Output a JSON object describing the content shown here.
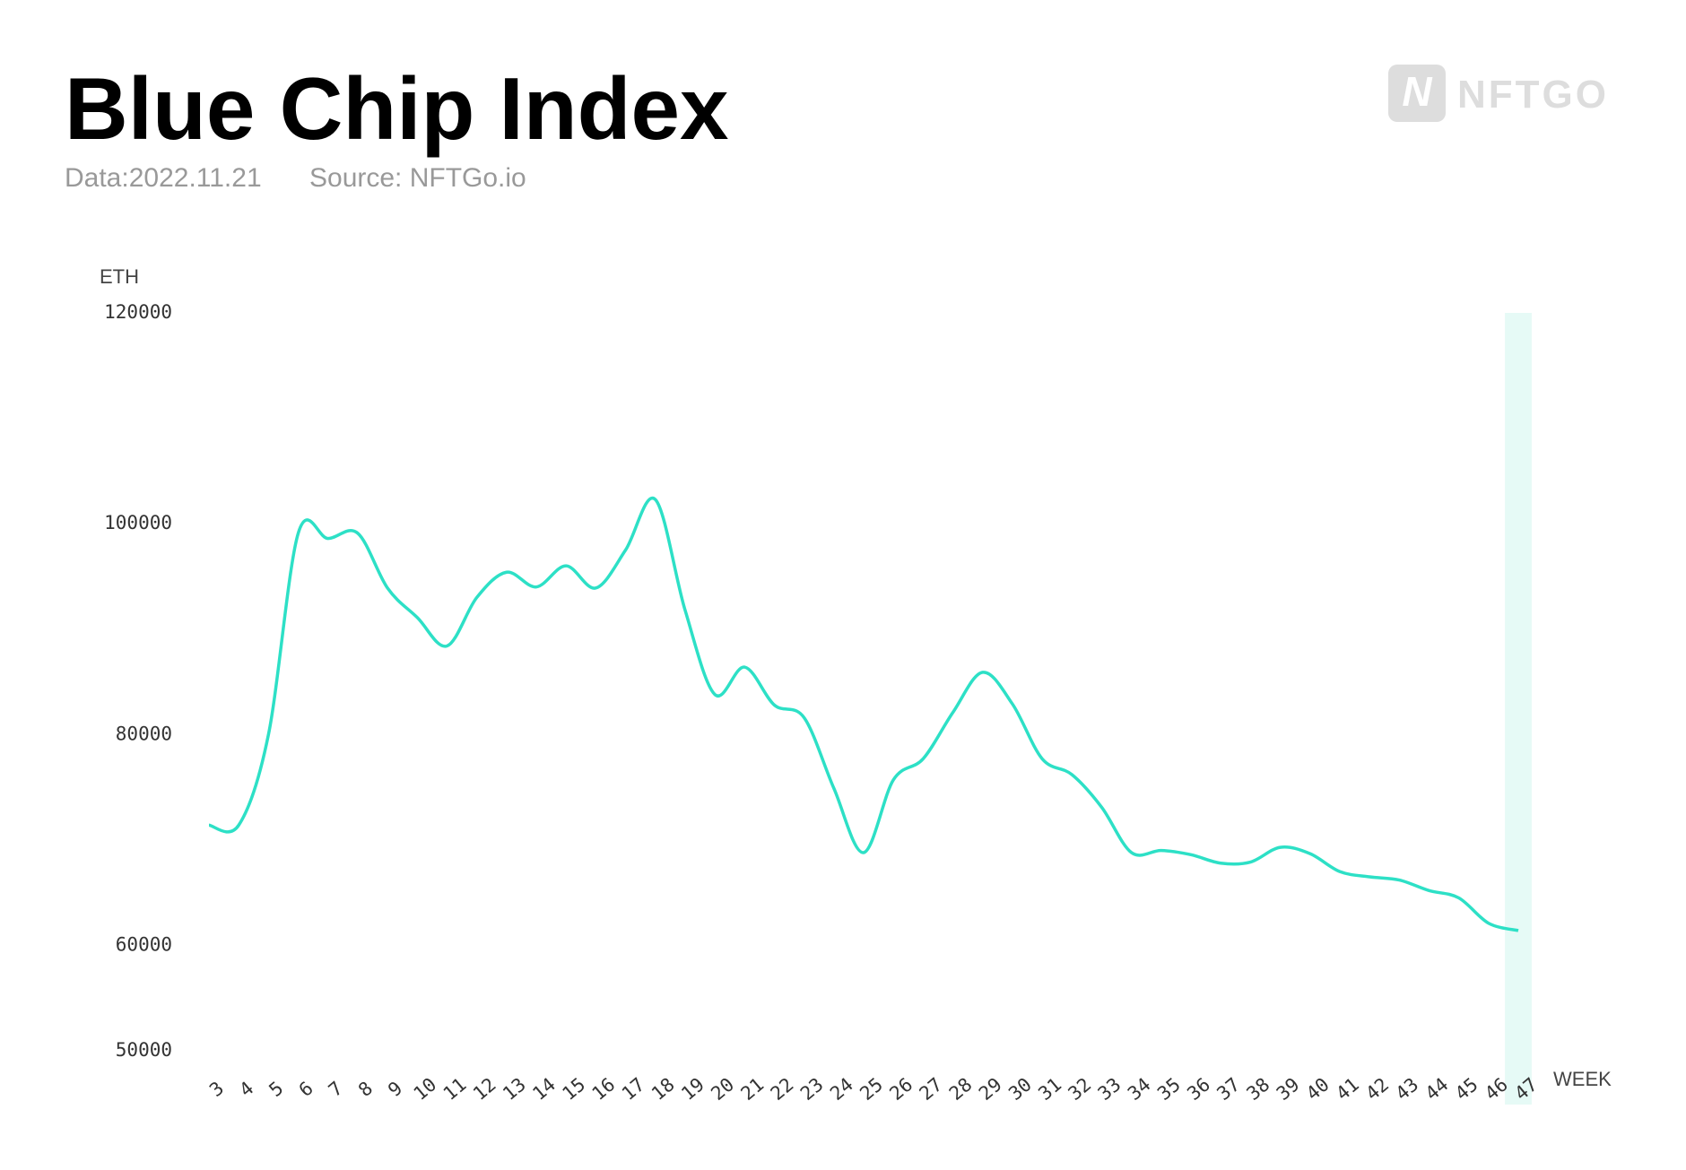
{
  "title": "Blue Chip Index",
  "date_label": "Data:2022.11.21",
  "source_label": "Source: NFTGo.io",
  "logo": "NFTGO",
  "chart_data": {
    "type": "line",
    "y_label": "ETH",
    "x_label": "WEEK",
    "color": "#2de0c6",
    "x": [
      3,
      4,
      5,
      6,
      7,
      8,
      9,
      10,
      11,
      12,
      13,
      14,
      15,
      16,
      17,
      18,
      19,
      20,
      21,
      22,
      23,
      24,
      25,
      26,
      27,
      28,
      29,
      30,
      31,
      32,
      33,
      34,
      35,
      36,
      37,
      38,
      39,
      40,
      41,
      42,
      43,
      44,
      45,
      46,
      47
    ],
    "values": [
      71400,
      71400,
      80000,
      99100,
      98600,
      99100,
      93900,
      91100,
      88400,
      93000,
      95400,
      94000,
      96000,
      93900,
      97500,
      102300,
      91800,
      83800,
      86400,
      82800,
      81600,
      74900,
      68800,
      75700,
      77700,
      82100,
      85900,
      82900,
      77700,
      76200,
      73100,
      68800,
      69000,
      68600,
      67800,
      67900,
      69300,
      68700,
      67000,
      66500,
      66200,
      65200,
      64500,
      62100,
      61400
    ],
    "xlim": [
      3,
      47
    ],
    "xticks": [
      3,
      4,
      5,
      6,
      7,
      8,
      9,
      10,
      11,
      12,
      13,
      14,
      15,
      16,
      17,
      18,
      19,
      20,
      21,
      22,
      23,
      24,
      25,
      26,
      27,
      28,
      29,
      30,
      31,
      32,
      33,
      34,
      35,
      36,
      37,
      38,
      39,
      40,
      41,
      42,
      43,
      44,
      45,
      46,
      47
    ],
    "ylim": [
      50000,
      120000
    ],
    "yticks": [
      50000,
      60000,
      80000,
      100000,
      120000
    ]
  }
}
